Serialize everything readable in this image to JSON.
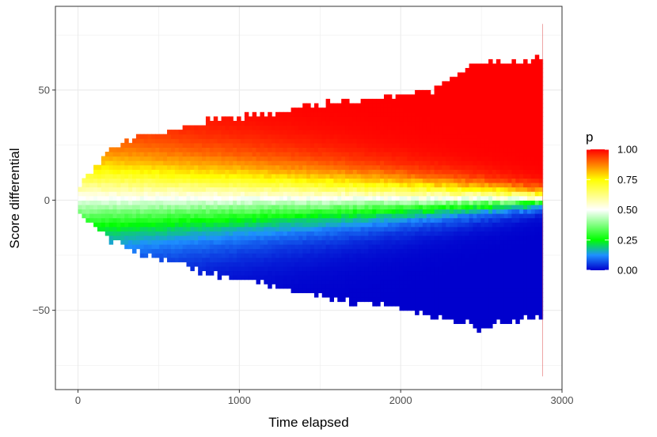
{
  "chart_data": {
    "type": "heatmap",
    "title": "",
    "xlabel": "Time elapsed",
    "ylabel": "Score differential",
    "xlim": [
      -140,
      3000
    ],
    "ylim": [
      -86,
      88
    ],
    "x_ticks": [
      0,
      1000,
      2000,
      3000
    ],
    "x_tick_labels": [
      "0",
      "1000",
      "2000",
      "3000"
    ],
    "y_ticks": [
      -50,
      0,
      50
    ],
    "y_tick_labels": [
      "−50",
      "0",
      "50"
    ],
    "grid": true,
    "legend": {
      "title": "p",
      "position": "right",
      "ticks": [
        0.0,
        0.25,
        0.5,
        0.75,
        1.0
      ],
      "tick_labels": [
        "0.00",
        "0.25",
        "0.50",
        "0.75",
        "1.00"
      ],
      "colors": [
        "#0000cd",
        "#1e90ff",
        "#00ff00",
        "#ffffff",
        "#ffff00",
        "#ff7f00",
        "#ff0000"
      ]
    },
    "envelope": {
      "x": [
        0,
        200,
        400,
        600,
        800,
        1000,
        1200,
        1400,
        1600,
        1800,
        2000,
        2200,
        2400,
        2500,
        2600,
        2700,
        2880
      ],
      "upper": [
        5,
        22,
        29,
        31,
        35,
        37,
        38,
        41,
        44,
        45,
        46,
        49,
        59,
        63,
        61,
        61,
        64
      ],
      "lower": [
        -5,
        -17,
        -24,
        -27,
        -32,
        -35,
        -38,
        -41,
        -44,
        -46,
        -48,
        -52,
        -54,
        -58,
        -55,
        -54,
        -51
      ]
    }
  }
}
